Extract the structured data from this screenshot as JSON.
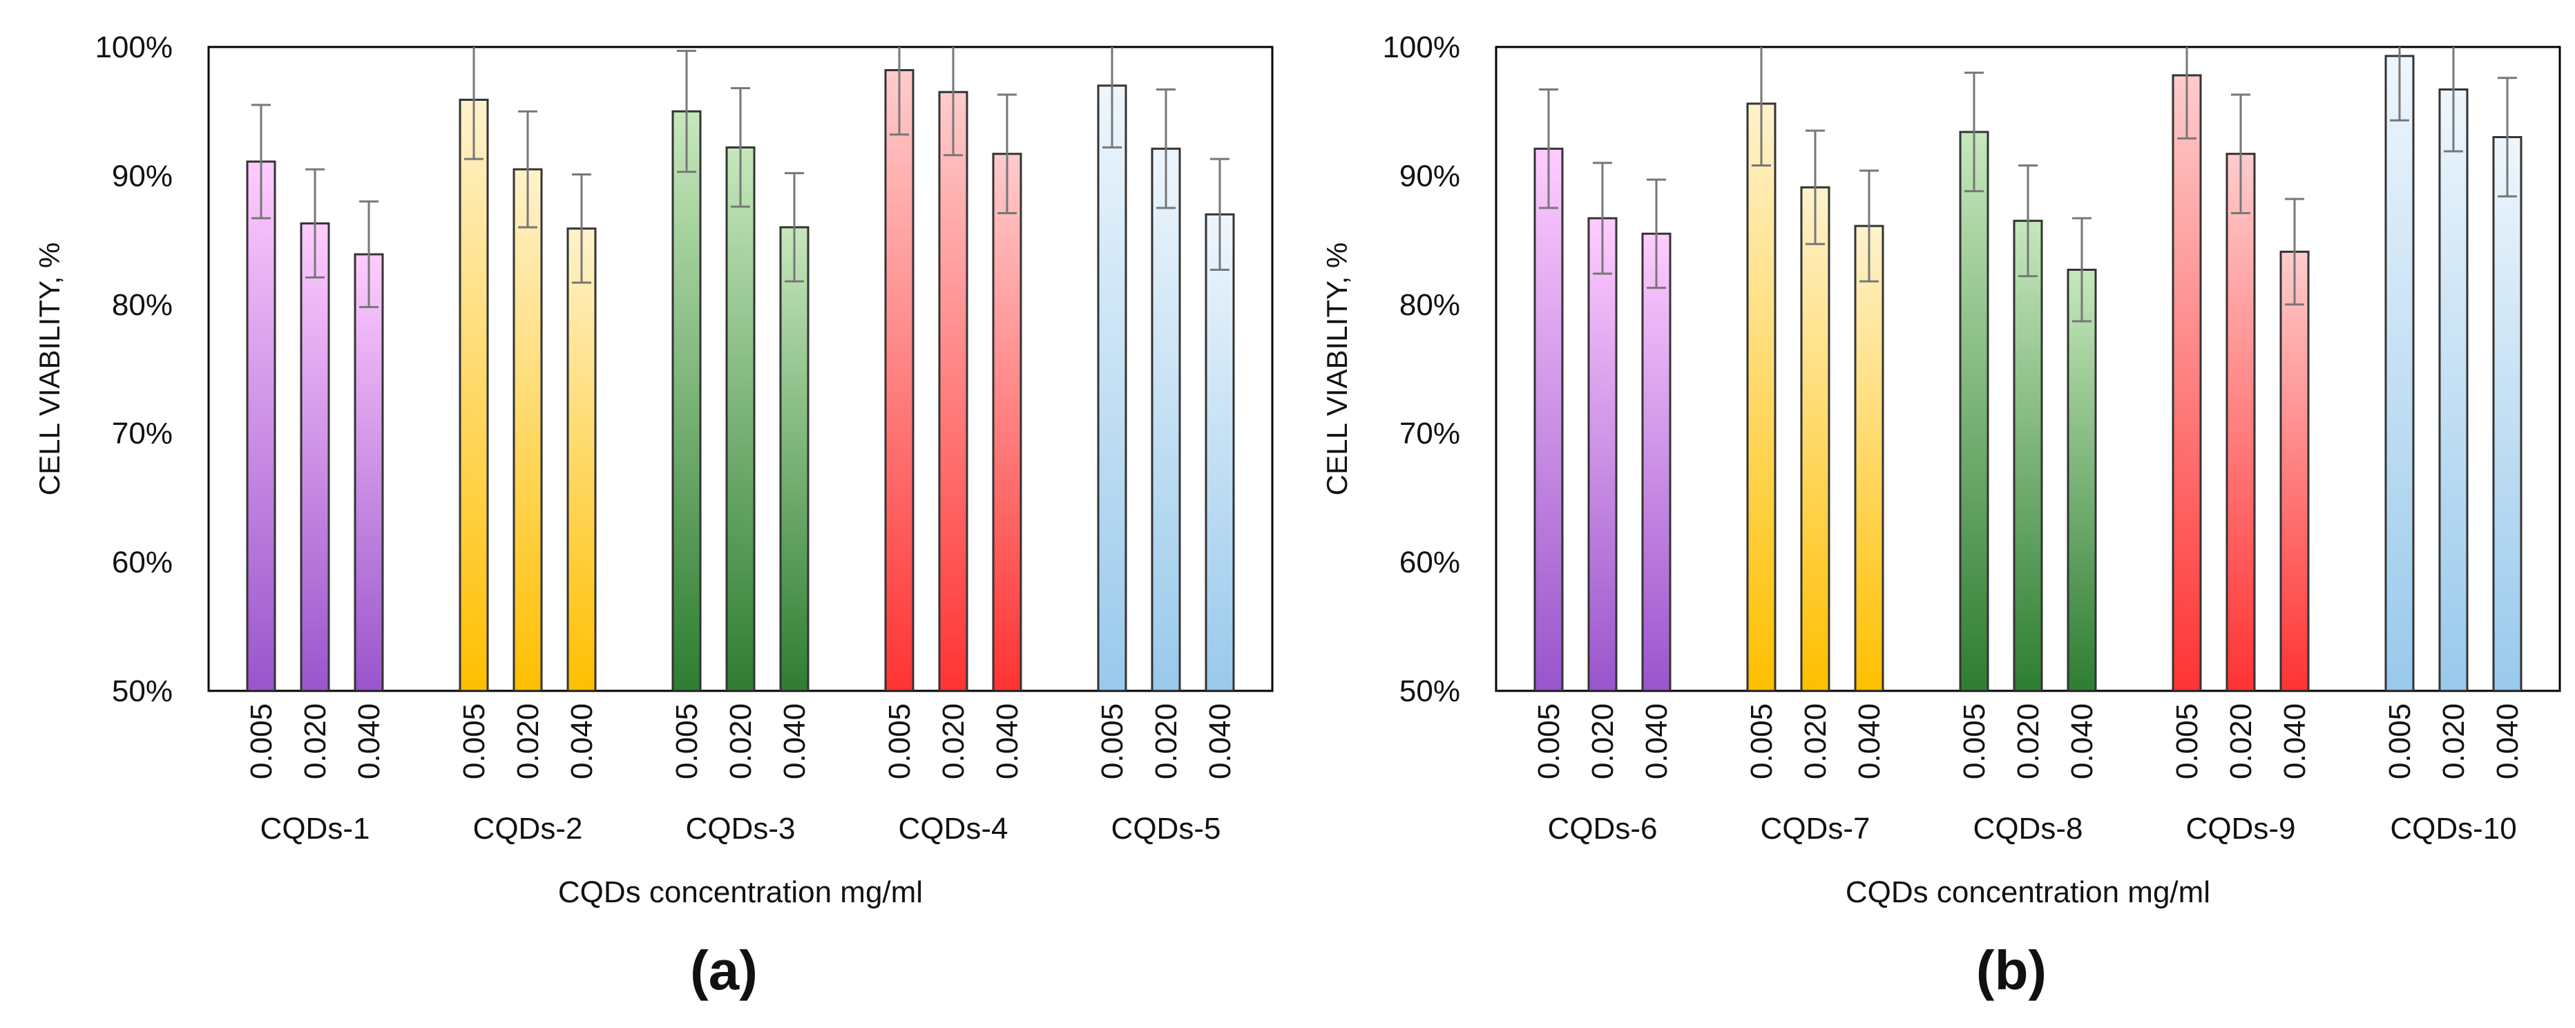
{
  "chart_data": [
    {
      "type": "bar",
      "panel_label": "(a)",
      "ylabel": "CELL VIABILITY, %",
      "xlabel": "CQDs concentration mg/ml",
      "ylim": [
        50,
        100
      ],
      "y_ticks": [
        "50%",
        "60%",
        "70%",
        "80%",
        "90%",
        "100%"
      ],
      "concentrations": [
        "0.005",
        "0.020",
        "0.040"
      ],
      "groups": [
        {
          "name": "CQDs-1",
          "color_top": "#ffccff",
          "color_bottom": "#9955cc",
          "values": [
            91.1,
            86.3,
            83.9
          ],
          "errors": [
            4.4,
            4.2,
            4.1
          ]
        },
        {
          "name": "CQDs-2",
          "color_top": "#fff2cc",
          "color_bottom": "#ffbf00",
          "values": [
            95.9,
            90.5,
            85.9
          ],
          "errors": [
            4.6,
            4.5,
            4.2
          ]
        },
        {
          "name": "CQDs-3",
          "color_top": "#c6e8bc",
          "color_bottom": "#2e7d32",
          "values": [
            95.0,
            92.2,
            86.0
          ],
          "errors": [
            4.7,
            4.6,
            4.2
          ]
        },
        {
          "name": "CQDs-4",
          "color_top": "#ffcccc",
          "color_bottom": "#ff3333",
          "values": [
            98.2,
            96.5,
            91.7
          ],
          "errors": [
            5.0,
            4.9,
            4.6
          ]
        },
        {
          "name": "CQDs-5",
          "color_top": "#eef6fc",
          "color_bottom": "#99c9ec",
          "values": [
            97.0,
            92.1,
            87.0
          ],
          "errors": [
            4.8,
            4.6,
            4.3
          ]
        }
      ]
    },
    {
      "type": "bar",
      "panel_label": "(b)",
      "ylabel": "CELL VIABILITY, %",
      "xlabel": "CQDs concentration mg/ml",
      "ylim": [
        50,
        100
      ],
      "y_ticks": [
        "50%",
        "60%",
        "70%",
        "80%",
        "90%",
        "100%"
      ],
      "concentrations": [
        "0.005",
        "0.020",
        "0.040"
      ],
      "groups": [
        {
          "name": "CQDs-6",
          "color_top": "#ffccff",
          "color_bottom": "#9955cc",
          "values": [
            92.1,
            86.7,
            85.5
          ],
          "errors": [
            4.6,
            4.3,
            4.2
          ]
        },
        {
          "name": "CQDs-7",
          "color_top": "#fff2cc",
          "color_bottom": "#ffbf00",
          "values": [
            95.6,
            89.1,
            86.1
          ],
          "errors": [
            4.8,
            4.4,
            4.3
          ]
        },
        {
          "name": "CQDs-8",
          "color_top": "#c6e8bc",
          "color_bottom": "#2e7d32",
          "values": [
            93.4,
            86.5,
            82.7
          ],
          "errors": [
            4.6,
            4.3,
            4.0
          ]
        },
        {
          "name": "CQDs-9",
          "color_top": "#ffcccc",
          "color_bottom": "#ff3333",
          "values": [
            97.8,
            91.7,
            84.1
          ],
          "errors": [
            4.9,
            4.6,
            4.1
          ]
        },
        {
          "name": "CQDs-10",
          "color_top": "#eef6fc",
          "color_bottom": "#99c9ec",
          "values": [
            99.3,
            96.7,
            93.0
          ],
          "errors": [
            5.0,
            4.8,
            4.6
          ]
        }
      ]
    }
  ]
}
